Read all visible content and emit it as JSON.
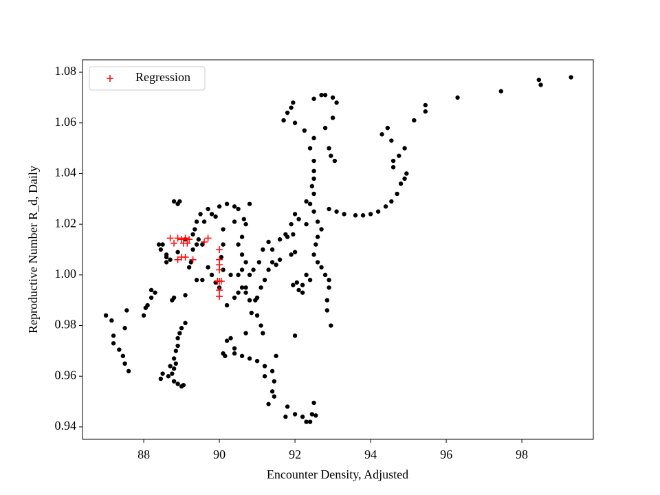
{
  "chart_data": {
    "type": "scatter",
    "xlabel": "Encounter Density, Adjusted",
    "ylabel": "Reproductive Number R_d, Daily",
    "xlim": [
      86.38,
      99.89
    ],
    "ylim": [
      0.9351,
      1.0849
    ],
    "xticks": [
      88,
      90,
      92,
      94,
      96,
      98
    ],
    "yticks": [
      0.94,
      0.96,
      0.98,
      {
        "value": 1.0,
        "label": "1.00"
      },
      1.02,
      1.04,
      1.06,
      1.08
    ],
    "legend": "upper left",
    "series": [
      {
        "color": "#000000",
        "marker": "dot",
        "x": [
          99.3,
          98.5,
          98.45,
          97.45,
          96.3,
          95.45,
          95.45,
          95.15,
          94.9,
          94.75,
          94.6,
          94.6,
          94.3,
          94.45,
          94.55,
          94.9,
          94.95,
          94.8,
          94.7,
          94.55,
          94.4,
          94.2,
          94.0,
          93.8,
          93.6,
          93.3,
          93.1,
          92.9,
          92.8,
          93.0,
          93.1,
          92.7,
          92.5,
          93.0,
          92.8,
          92.9,
          92.95,
          93.05,
          92.5,
          92.5,
          92.45,
          92.5,
          92.4,
          92.5,
          92.6,
          92.7,
          92.6,
          92.55,
          92.5,
          92.6,
          92.7,
          92.8,
          92.9,
          92.9,
          92.85,
          92.85,
          92.95,
          92.3,
          92.4,
          92.2,
          92.1,
          92.2,
          92.05,
          91.95,
          92.0,
          91.9,
          91.95,
          91.9,
          91.75,
          91.6,
          91.8,
          91.7,
          91.8,
          91.95,
          91.9,
          92.0,
          92.25,
          92.4,
          92.5,
          92.5,
          92.3,
          92.0,
          92.1,
          92.3,
          92.0,
          91.5,
          91.45,
          91.4,
          91.3,
          91.45,
          91.75,
          91.8,
          92.0,
          92.2,
          92.3,
          92.4,
          92.55,
          92.5,
          92.45,
          91.4,
          91.2,
          91.2,
          91.0,
          90.8,
          90.6,
          90.4,
          90.15,
          90.2,
          90.3,
          90.4,
          90.1,
          90.7,
          90.0,
          90.2,
          90.4,
          90.5,
          90.7,
          90.65,
          90.8,
          90.4,
          90.6,
          90.5,
          90.6,
          90.7,
          90.6,
          90.5,
          90.6,
          90.7,
          90.8,
          90.85,
          90.95,
          91.0,
          91.1,
          91.15,
          91.0,
          91.1,
          91.2,
          91.3,
          91.4,
          91.5,
          91.6,
          91.4,
          91.3,
          91.15,
          91.05,
          90.9,
          90.8,
          90.7,
          90.5,
          90.4,
          90.2,
          90.3,
          90.1,
          90.05,
          90.1,
          90.1,
          89.9,
          89.7,
          89.8,
          89.6,
          89.5,
          89.4,
          89.35,
          89.3,
          89.45,
          89.55,
          89.4,
          89.3,
          89.25,
          89.2,
          89.4,
          89.55,
          89.7,
          89.8,
          89.9,
          90.0,
          88.8,
          88.95,
          88.9,
          88.4,
          88.45,
          88.6,
          88.7,
          88.5,
          88.6,
          88.9,
          89.1,
          88.6,
          88.8,
          88.75,
          88.3,
          88.2,
          88.1,
          88.05,
          88.0,
          88.2,
          89.0,
          88.95,
          88.9,
          88.9,
          88.85,
          88.8,
          88.85,
          88.8,
          88.75,
          88.7,
          88.8,
          88.9,
          89.0,
          89.05,
          88.5,
          88.45,
          88.65,
          89.1,
          89.1,
          87.0,
          87.15,
          87.2,
          87.2,
          87.35,
          87.45,
          87.5,
          87.6,
          87.5,
          87.55
        ],
        "y": [
          1.078,
          1.075,
          1.077,
          1.0725,
          1.07,
          1.067,
          1.0645,
          1.061,
          1.05,
          1.047,
          1.045,
          1.0425,
          1.0555,
          1.058,
          1.053,
          1.038,
          1.04,
          1.036,
          1.032,
          1.029,
          1.027,
          1.025,
          1.024,
          1.0235,
          1.0235,
          1.024,
          1.025,
          1.026,
          1.071,
          1.07,
          1.068,
          1.071,
          1.0695,
          1.062,
          1.058,
          1.05,
          1.047,
          1.045,
          1.041,
          1.038,
          1.035,
          1.032,
          1.028,
          1.025,
          1.021,
          1.018,
          1.015,
          1.012,
          1.008,
          1.005,
          1.003,
          1.0,
          0.998,
          0.995,
          0.99,
          0.986,
          0.98,
          1.0,
          0.998,
          0.996,
          0.994,
          0.993,
          0.997,
          0.996,
          1.009,
          1.008,
          1.016,
          1.02,
          1.016,
          1.014,
          1.015,
          1.061,
          1.064,
          1.068,
          1.066,
          1.06,
          1.057,
          1.05,
          1.045,
          1.054,
          1.029,
          1.024,
          1.022,
          1.02,
          0.976,
          0.968,
          0.958,
          0.954,
          0.949,
          0.952,
          0.944,
          0.948,
          0.945,
          0.944,
          0.942,
          0.942,
          0.9445,
          0.9495,
          0.945,
          0.962,
          0.964,
          0.96,
          0.966,
          0.967,
          0.968,
          0.969,
          0.968,
          0.974,
          0.975,
          0.971,
          0.969,
          0.977,
          1.027,
          1.028,
          1.027,
          1.026,
          1.02,
          1.022,
          1.028,
          1.021,
          1.015,
          1.012,
          1.008,
          1.005,
          1.002,
          1.0,
          0.995,
          0.993,
          0.99,
          0.985,
          0.99,
          0.984,
          0.98,
          0.977,
          0.991,
          0.995,
          0.998,
          1.002,
          1.005,
          1.004,
          1.006,
          1.01,
          1.013,
          1.01,
          1.005,
          1.002,
          1.0,
          0.995,
          0.993,
          0.991,
          0.988,
          1.0,
          1.002,
          1.007,
          1.012,
          1.018,
          1.023,
          1.026,
          1.024,
          1.021,
          1.024,
          1.021,
          1.018,
          1.016,
          1.014,
          1.012,
          1.012,
          1.01,
          1.005,
          1.003,
          0.998,
          0.998,
          1.003,
          1.0,
          0.997,
          0.995,
          1.029,
          1.029,
          1.028,
          1.012,
          1.01,
          1.008,
          1.006,
          1.012,
          1.007,
          1.009,
          1.014,
          1.005,
          0.991,
          0.99,
          0.993,
          0.991,
          0.988,
          0.987,
          0.984,
          0.994,
          0.979,
          0.977,
          0.975,
          0.972,
          0.97,
          0.967,
          0.965,
          0.963,
          0.961,
          0.964,
          0.958,
          0.957,
          0.956,
          0.9565,
          0.961,
          0.959,
          0.96,
          0.992,
          0.981,
          0.984,
          0.982,
          0.976,
          0.973,
          0.9705,
          0.968,
          0.965,
          0.962,
          0.979,
          0.986
        ]
      },
      {
        "name": "Regression",
        "color": "#ff0000",
        "marker": "plus",
        "x": [
          88.7,
          88.9,
          89.0,
          89.1,
          89.2,
          89.05,
          88.8,
          89.15,
          89.6,
          89.7,
          88.9,
          89.0,
          89.1,
          89.3,
          90.0,
          90.0,
          90.0,
          90.0,
          90.0,
          90.05,
          90.0,
          90.0,
          89.95
        ],
        "y": [
          1.0145,
          1.0145,
          1.014,
          1.0145,
          1.014,
          1.0125,
          1.0125,
          1.0125,
          1.013,
          1.0145,
          1.006,
          1.007,
          1.007,
          1.006,
          1.01,
          1.006,
          1.004,
          1.002,
          0.9975,
          0.9975,
          0.994,
          0.9915,
          0.9975
        ]
      }
    ]
  }
}
